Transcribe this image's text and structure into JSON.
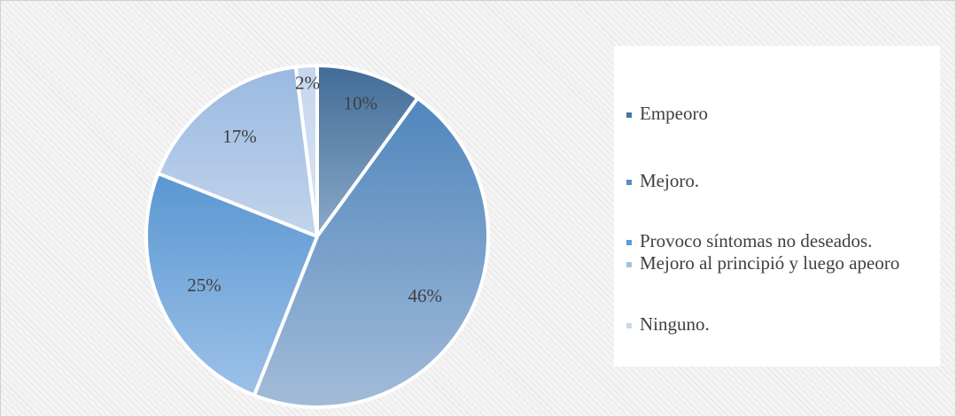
{
  "chart_data": {
    "type": "pie",
    "categories": [
      "Empeoro",
      "Mejoro.",
      "Provoco síntomas no deseados.",
      "Mejoro al principió y luego apeoro",
      "Ninguno."
    ],
    "values": [
      10,
      46,
      25,
      17,
      2
    ],
    "labels": [
      "10%",
      "46%",
      "25%",
      "17%",
      "2%"
    ],
    "title": "",
    "legend_position": "right",
    "colors": [
      "#4a77a0",
      "#5a8ec4",
      "#5e9ad6",
      "#a4c0e4",
      "#c8d8ef"
    ]
  },
  "legend": {
    "items": [
      {
        "label": "Empeoro",
        "color": "#4a77a0"
      },
      {
        "label": "Mejoro.",
        "color": "#5a8ec4"
      },
      {
        "label": "Provoco síntomas no deseados.",
        "color": "#5e9ad6"
      },
      {
        "label": "Mejoro al principió y luego apeoro",
        "color": "#a4c0e4"
      },
      {
        "label": "Ninguno.",
        "color": "#c8d8ef"
      }
    ]
  }
}
